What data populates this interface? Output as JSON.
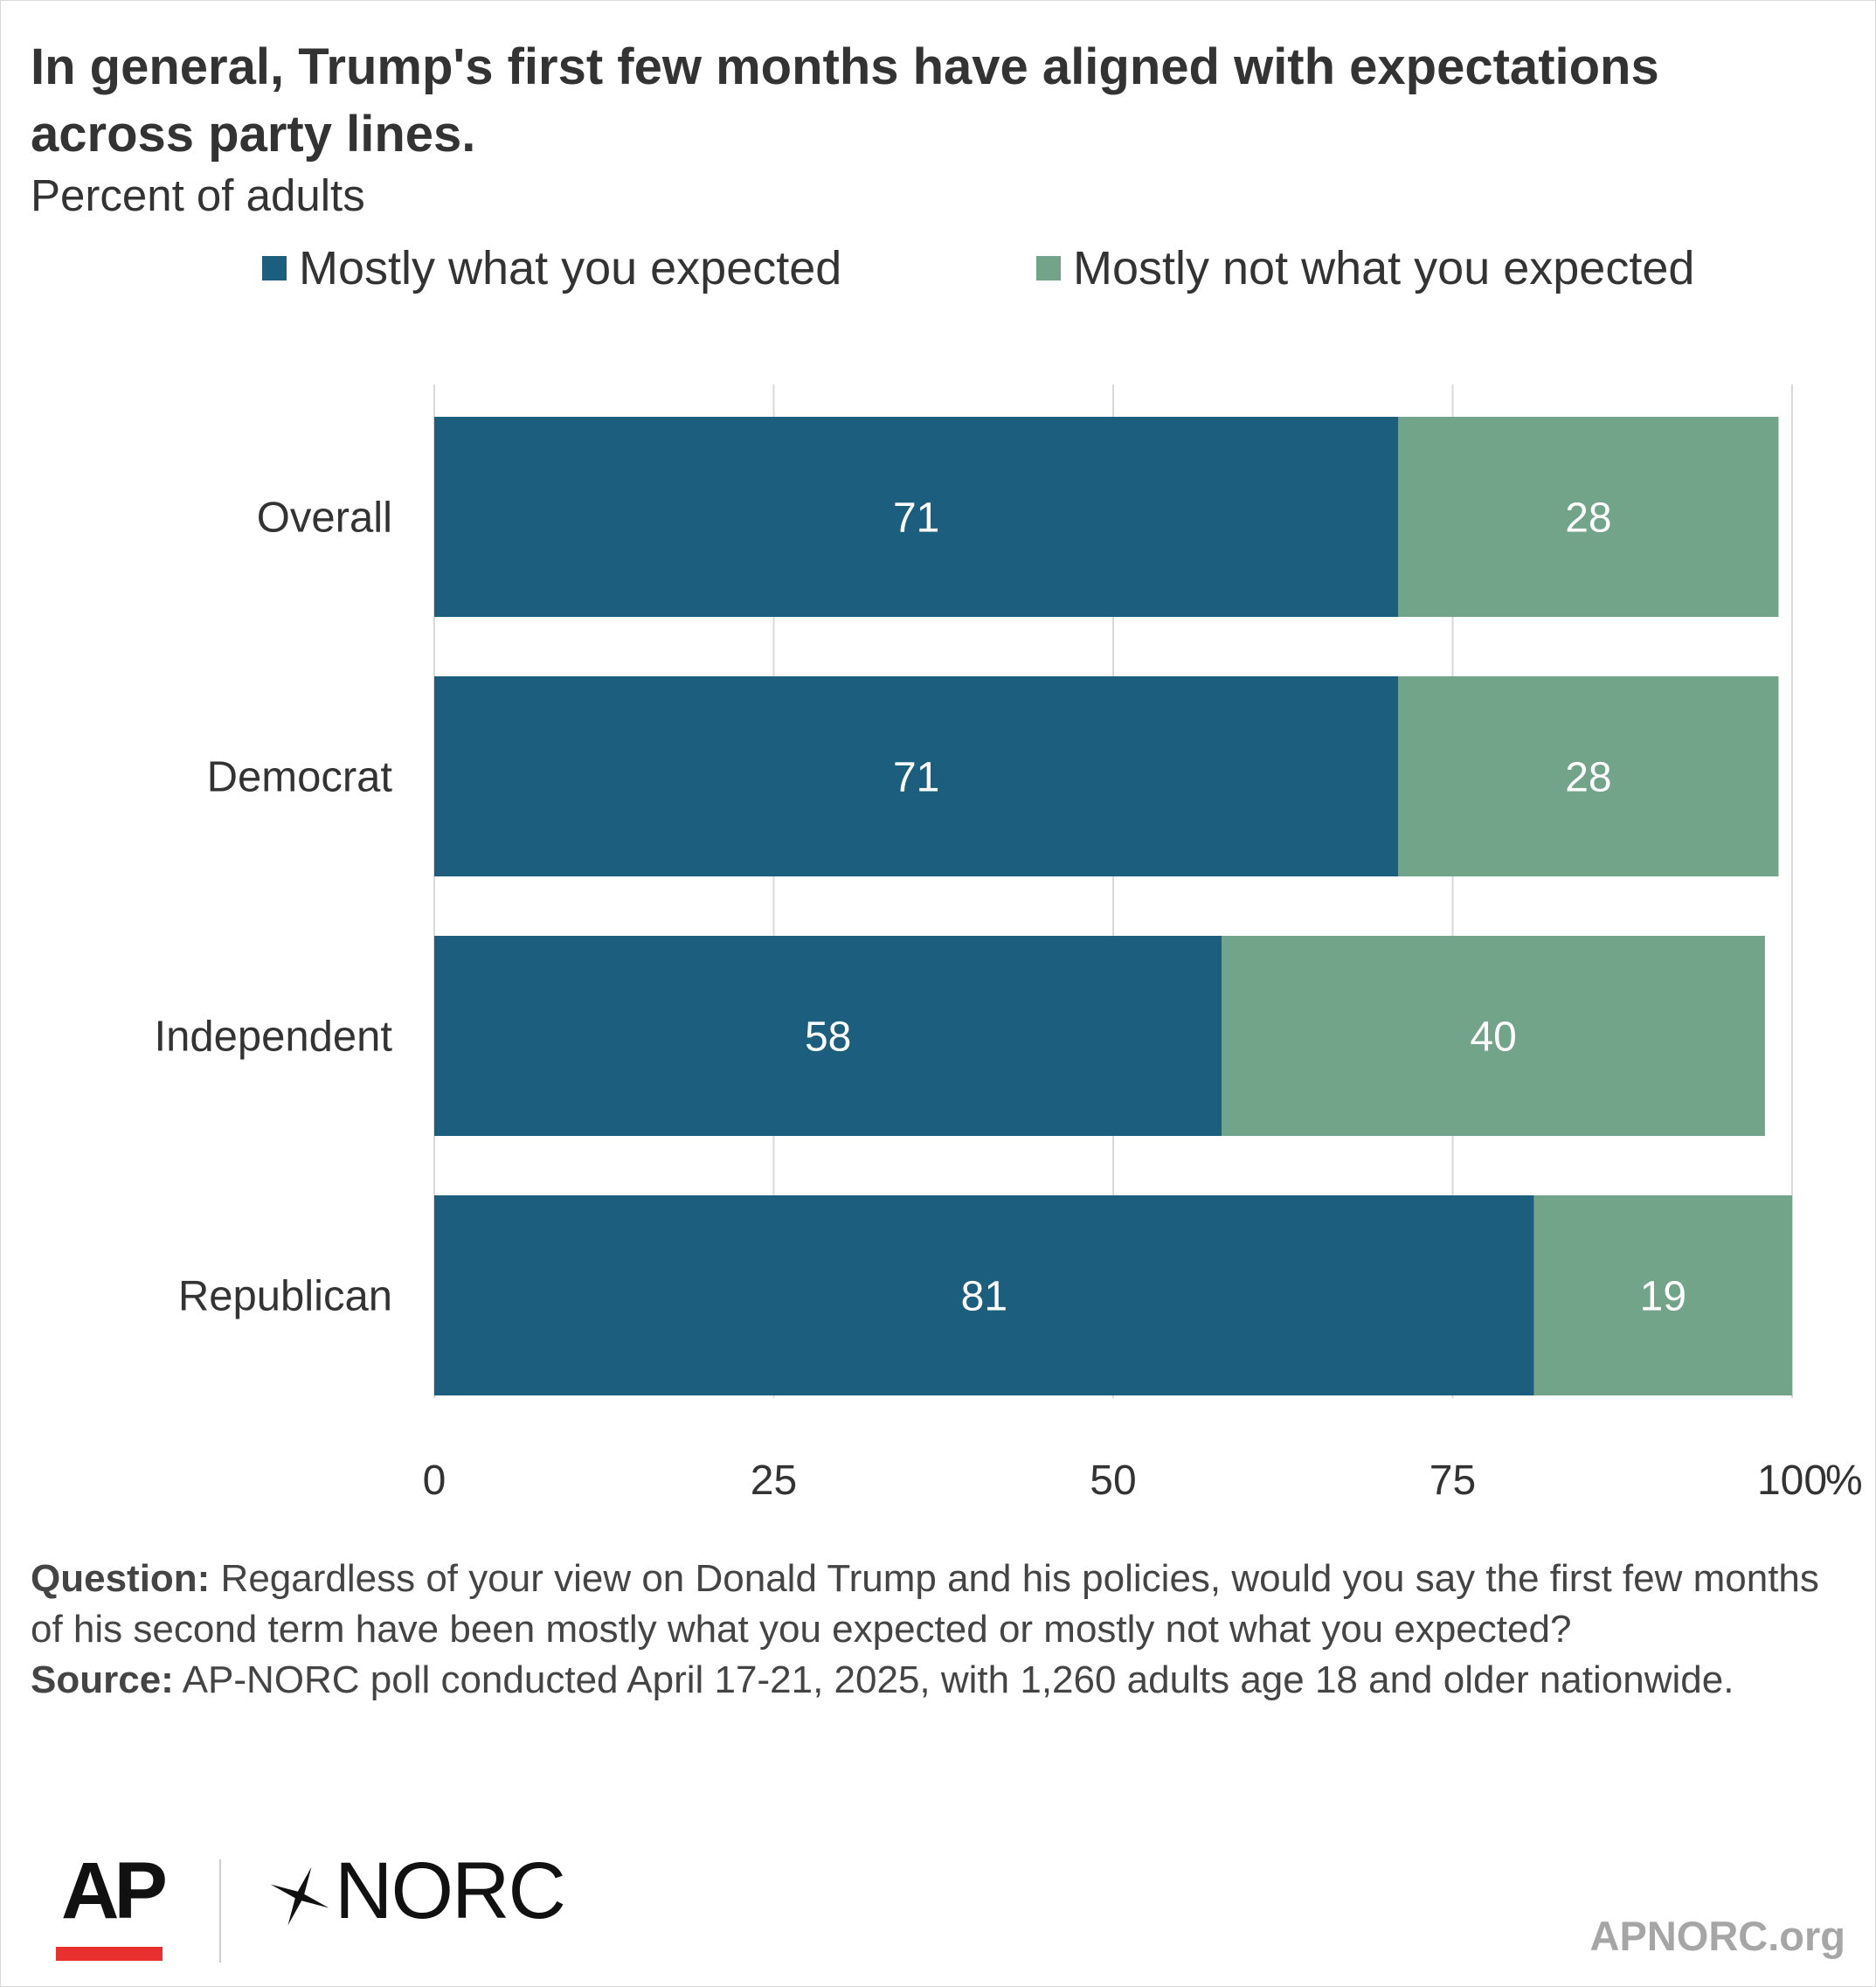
{
  "title": "In general, Trump's first few months have aligned with expectations across party lines.",
  "subtitle": "Percent of adults",
  "colors": {
    "expected": "#1b5e7d",
    "not_expected": "#71a488",
    "grid": "#d9d9d9",
    "label_text": "#ffffff",
    "axis_text": "#333333",
    "logo_red": "#e8312f"
  },
  "chart_data": {
    "type": "bar",
    "orientation": "horizontal",
    "stacked": true,
    "categories": [
      "Overall",
      "Democrat",
      "Independent",
      "Republican"
    ],
    "series": [
      {
        "name": "Mostly what you expected",
        "color": "#1b5e7d",
        "values": [
          71,
          71,
          58,
          81
        ]
      },
      {
        "name": "Mostly not what you expected",
        "color": "#71a488",
        "values": [
          28,
          28,
          40,
          19
        ]
      }
    ],
    "xlim": [
      0,
      100
    ],
    "xticks": [
      0,
      25,
      50,
      75,
      100
    ],
    "xtick_labels": [
      "0",
      "25",
      "50",
      "75",
      "100"
    ],
    "x_unit": "%",
    "grid": "vertical",
    "legend_position": "top"
  },
  "notes": {
    "question_label": "Question:",
    "question_text": " Regardless of your view on Donald Trump and his policies, would you say the first few months of his second term have been mostly what you expected or mostly not what you expected?",
    "source_label": "Source:",
    "source_text": " AP-NORC poll conducted April 17-21, 2025, with 1,260 adults age 18 and older nationwide."
  },
  "footer": {
    "ap_logo": "AP",
    "norc_logo": "NORC",
    "site": "APNORC.org"
  }
}
